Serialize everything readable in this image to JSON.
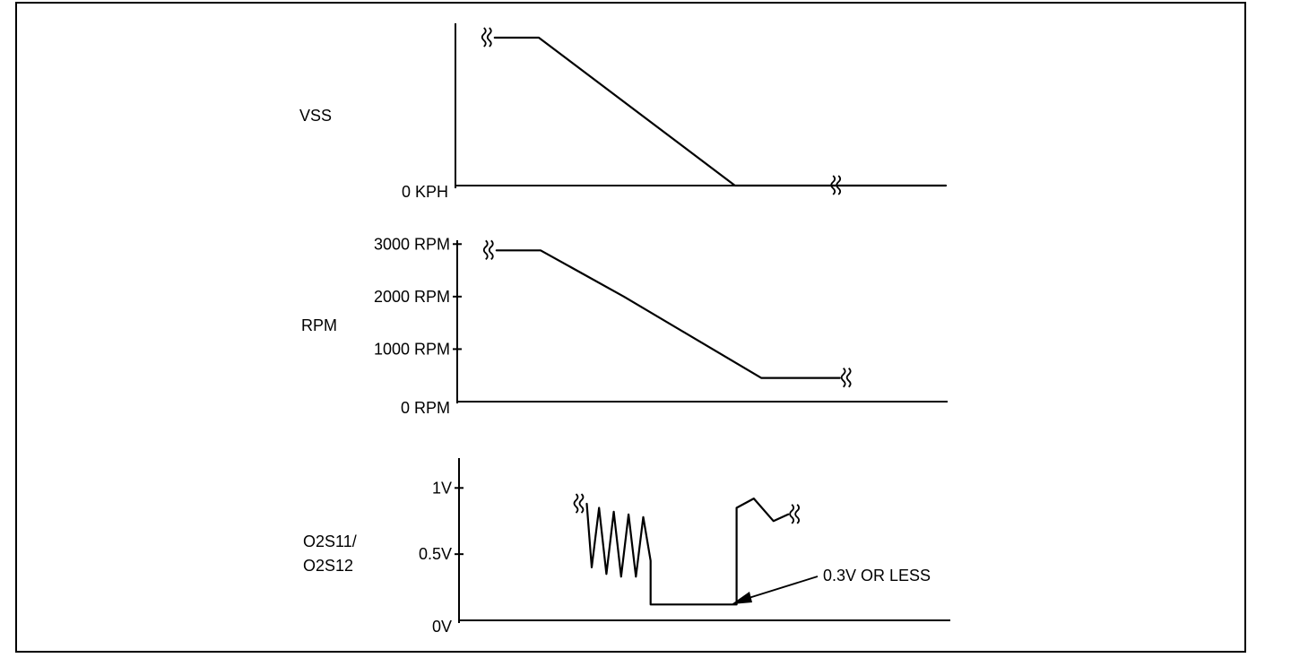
{
  "chart_data": [
    {
      "type": "line",
      "id": "vss",
      "ylabel": "VSS",
      "y_baseline_label": "0 KPH",
      "ylim": [
        0,
        1
      ],
      "points": [
        [
          0.08,
          1.0
        ],
        [
          0.17,
          1.0
        ],
        [
          0.57,
          0.0
        ],
        [
          1.0,
          0.0
        ]
      ]
    },
    {
      "type": "line",
      "id": "rpm",
      "ylabel": "RPM",
      "ticks": [
        {
          "value": 0,
          "label": "0 RPM"
        },
        {
          "value": 1000,
          "label": "1000 RPM"
        },
        {
          "value": 2000,
          "label": "2000 RPM"
        },
        {
          "value": 3000,
          "label": "3000 RPM"
        }
      ],
      "ylim": [
        0,
        3500
      ],
      "points": [
        [
          0.08,
          2880
        ],
        [
          0.17,
          2880
        ],
        [
          0.34,
          2000
        ],
        [
          0.62,
          450
        ],
        [
          0.78,
          450
        ]
      ]
    },
    {
      "type": "line",
      "id": "o2s",
      "ylabel_lines": [
        "O2S11/",
        "O2S12"
      ],
      "ticks": [
        {
          "value": 0,
          "label": "0V"
        },
        {
          "value": 0.5,
          "label": "0.5V"
        },
        {
          "value": 1,
          "label": "1V"
        }
      ],
      "ylim": [
        0,
        1.3
      ],
      "points": [
        [
          0.26,
          0.88
        ],
        [
          0.27,
          0.4
        ],
        [
          0.285,
          0.85
        ],
        [
          0.3,
          0.35
        ],
        [
          0.315,
          0.82
        ],
        [
          0.33,
          0.33
        ],
        [
          0.345,
          0.8
        ],
        [
          0.36,
          0.33
        ],
        [
          0.375,
          0.78
        ],
        [
          0.39,
          0.45
        ],
        [
          0.39,
          0.12
        ],
        [
          0.565,
          0.12
        ],
        [
          0.565,
          0.85
        ],
        [
          0.6,
          0.92
        ],
        [
          0.64,
          0.75
        ],
        [
          0.67,
          0.8
        ]
      ],
      "annotation": "0.3V OR LESS"
    }
  ]
}
